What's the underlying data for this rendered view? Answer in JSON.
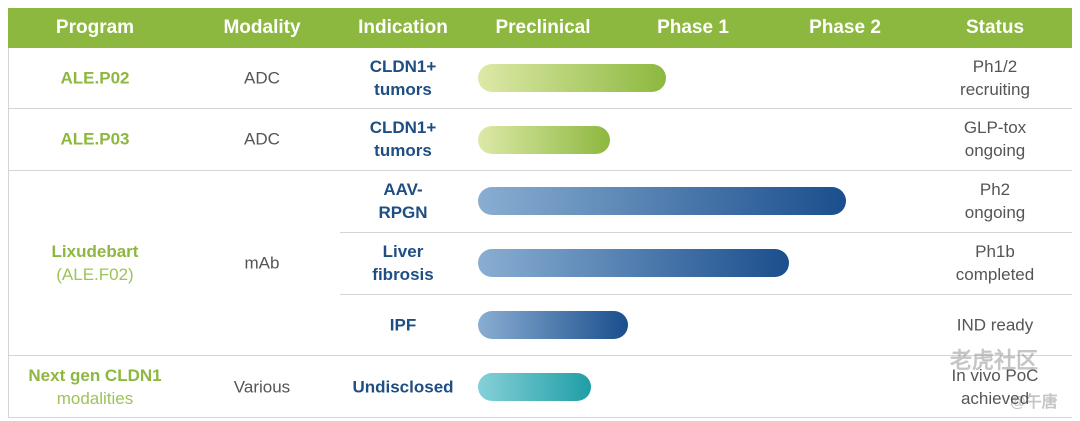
{
  "header": {
    "columns": [
      "Program",
      "Modality",
      "Indication",
      "Preclinical",
      "Phase 1",
      "Phase 2",
      "Status"
    ]
  },
  "programs": [
    {
      "name": [
        "ALE.P02"
      ],
      "modality": "ADC",
      "indications": [
        {
          "name": [
            "CLDN1+",
            "tumors"
          ],
          "status": [
            "Ph1/2",
            "recruiting"
          ]
        }
      ]
    },
    {
      "name": [
        "ALE.P03"
      ],
      "modality": "ADC",
      "indications": [
        {
          "name": [
            "CLDN1+",
            "tumors"
          ],
          "status": [
            "GLP-tox",
            "ongoing"
          ]
        }
      ]
    },
    {
      "name": [
        "Lixudebart",
        "(ALE.F02)"
      ],
      "modality": "mAb",
      "indications": [
        {
          "name": [
            "AAV-",
            "RPGN"
          ],
          "status": [
            "Ph2",
            "ongoing"
          ]
        },
        {
          "name": [
            "Liver",
            "fibrosis"
          ],
          "status": [
            "Ph1b",
            "completed"
          ]
        },
        {
          "name": [
            "IPF"
          ],
          "status": [
            "IND ready"
          ]
        }
      ]
    },
    {
      "name": [
        "Next gen CLDN1",
        "modalities"
      ],
      "modality": "Various",
      "indications": [
        {
          "name": [
            "Undisclosed"
          ],
          "status": [
            "In vivo PoC",
            "achieved"
          ]
        }
      ]
    }
  ],
  "watermark": [
    "老虎社区",
    "@午唐"
  ]
}
